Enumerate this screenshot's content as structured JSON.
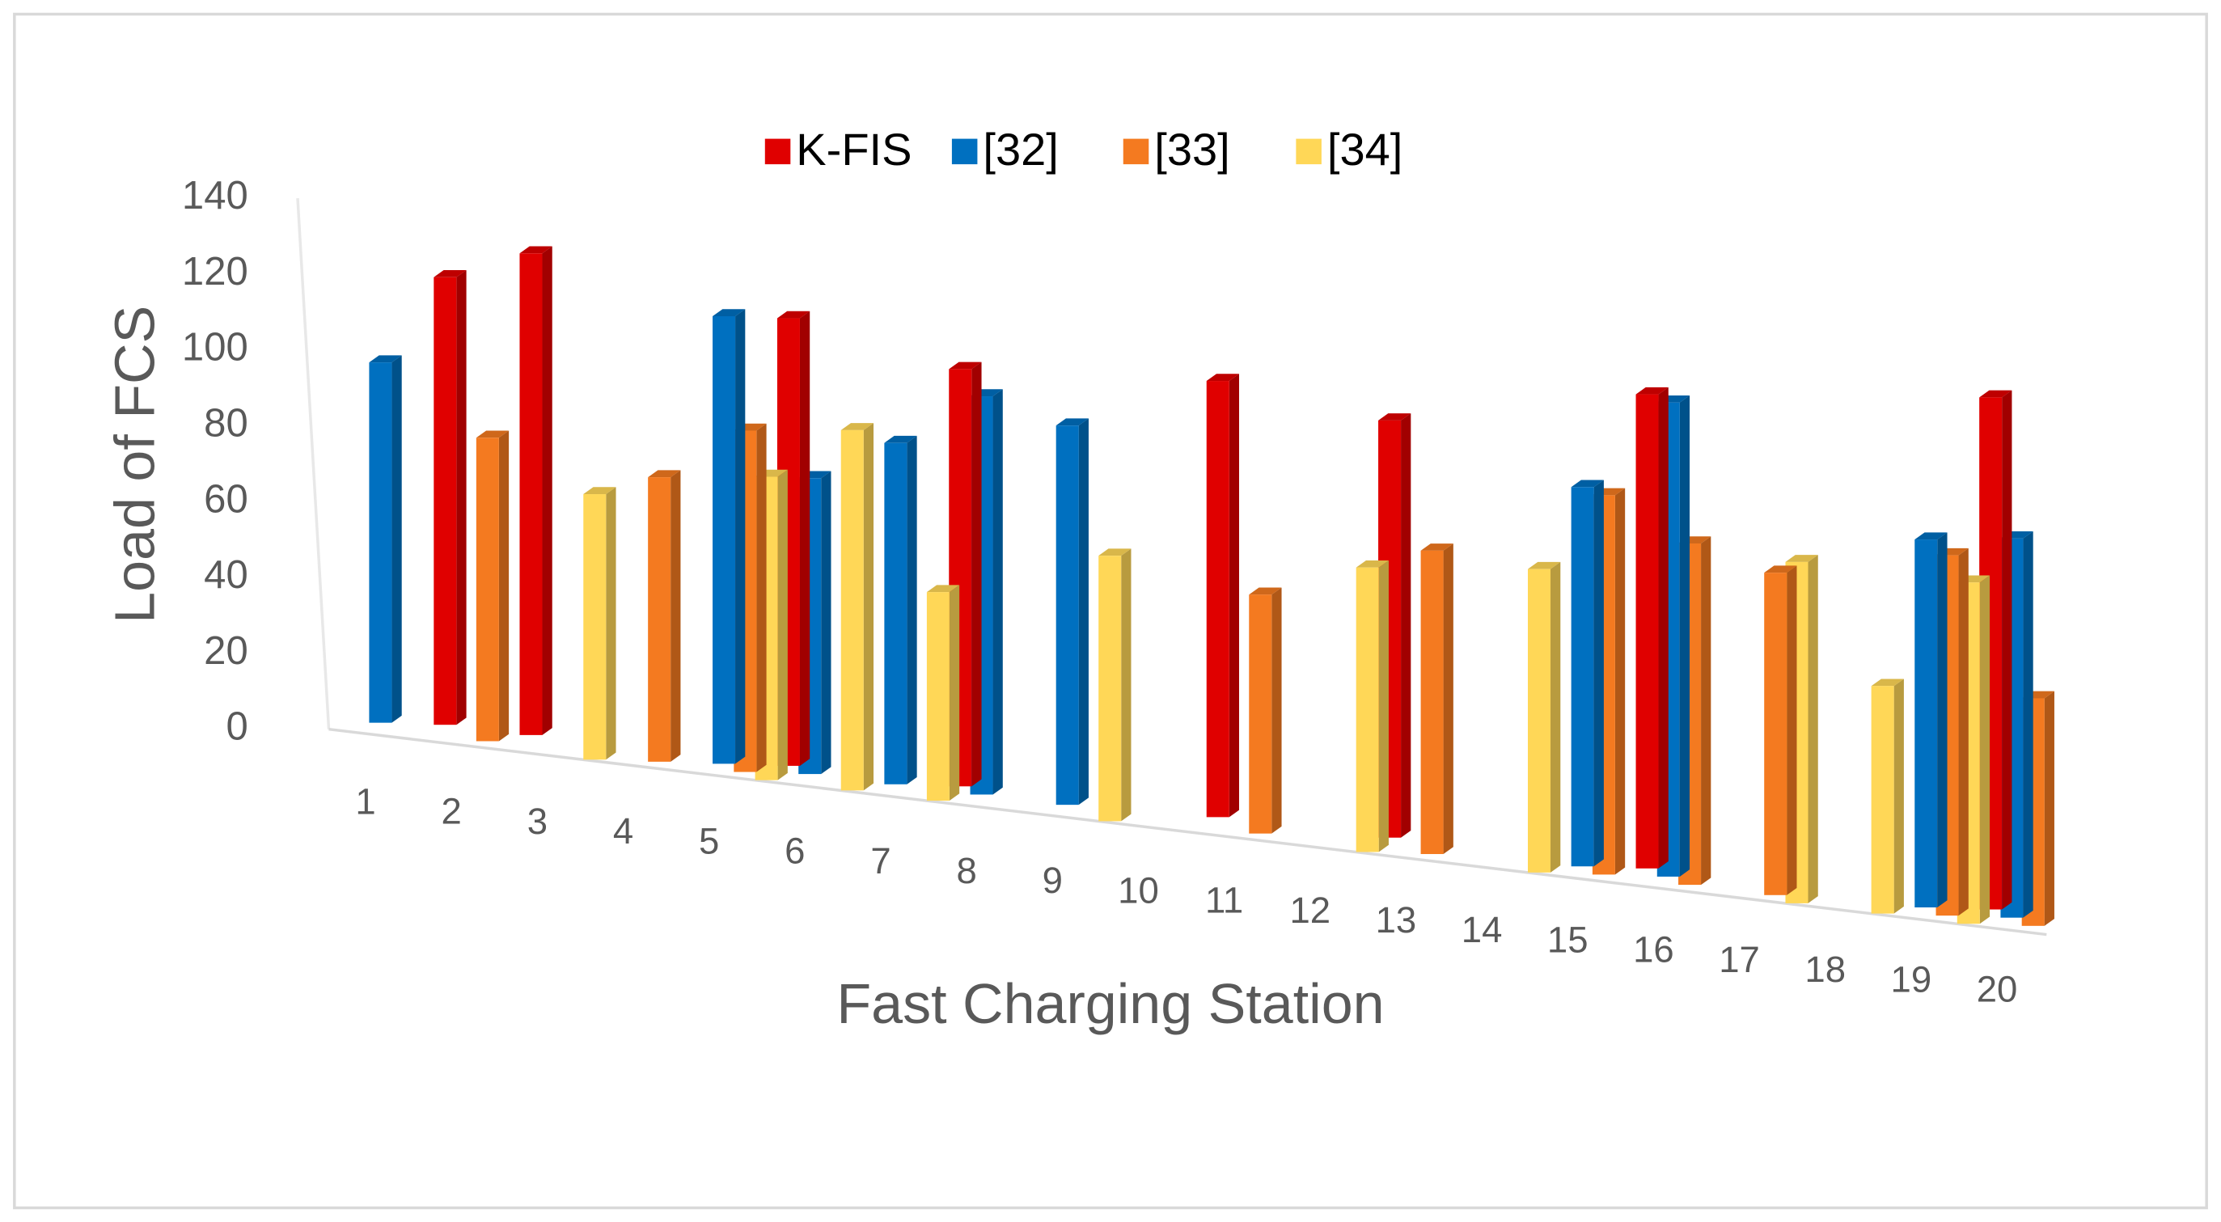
{
  "chart_data": {
    "type": "bar3d",
    "x_label": "Fast Charging Station",
    "y_label": "Load of FCS",
    "categories": [
      "1",
      "2",
      "3",
      "4",
      "5",
      "6",
      "7",
      "8",
      "9",
      "10",
      "11",
      "12",
      "13",
      "14",
      "15",
      "16",
      "17",
      "18",
      "19",
      "20"
    ],
    "series": [
      {
        "name": "K-FIS",
        "color": "#e00000",
        "values": [
          null,
          118,
          127,
          null,
          null,
          118,
          null,
          110,
          null,
          null,
          115,
          null,
          110,
          null,
          null,
          125,
          null,
          null,
          null,
          135
        ]
      },
      {
        "name": "[32]",
        "color": "#0070c0",
        "values": [
          95,
          null,
          null,
          null,
          118,
          78,
          90,
          105,
          100,
          null,
          null,
          null,
          null,
          null,
          100,
          125,
          null,
          null,
          97,
          100
        ]
      },
      {
        "name": "[33]",
        "color": "#f47a20",
        "values": [
          null,
          80,
          null,
          75,
          90,
          null,
          null,
          null,
          null,
          null,
          63,
          null,
          80,
          null,
          100,
          90,
          85,
          null,
          95,
          60
        ]
      },
      {
        "name": "[34]",
        "color": "#ffd757",
        "values": [
          null,
          null,
          70,
          null,
          80,
          95,
          55,
          null,
          70,
          null,
          null,
          75,
          null,
          80,
          null,
          null,
          90,
          60,
          90,
          null
        ]
      }
    ],
    "ylim": [
      0,
      140
    ],
    "yticks": [
      0,
      20,
      40,
      60,
      80,
      100,
      120,
      140
    ],
    "legend": "top"
  }
}
